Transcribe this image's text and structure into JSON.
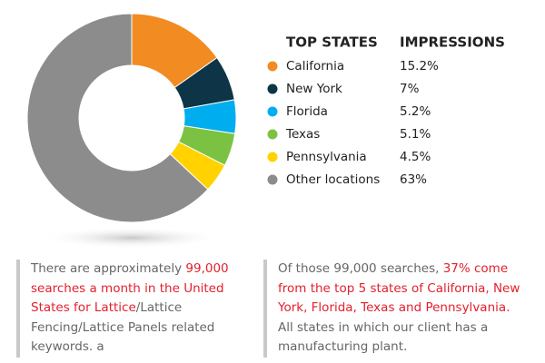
{
  "chart_data": {
    "type": "donut",
    "headers": [
      "TOP STATES",
      "IMPRESSIONS"
    ],
    "categories": [
      "California",
      "New York",
      "Florida",
      "Texas",
      "Pennsylvania",
      "Other locations"
    ],
    "values": [
      15.2,
      7,
      5.2,
      5.1,
      4.5,
      63
    ],
    "value_labels": [
      "15.2%",
      "7%",
      "5.2%",
      "5.1%",
      "4.5%",
      "63%"
    ],
    "colors": [
      "#f28b22",
      "#0d3547",
      "#00aeef",
      "#7cc242",
      "#ffd200",
      "#8c8c8c"
    ]
  },
  "highlight_color": "#e3202d",
  "paragraphs": [
    [
      {
        "text": "There are approximately ",
        "highlight": false
      },
      {
        "text": "99,000 searches a month in the United States for Lattice",
        "highlight": true
      },
      {
        "text": "/Lattice Fencing/Lattice Panels related keywords. a",
        "highlight": false
      }
    ],
    [
      {
        "text": "Of those 99,000 searches, ",
        "highlight": false
      },
      {
        "text": "37% come from the top 5 states of California, New York, Florida, Texas and Pennsylvania.",
        "highlight": true
      },
      {
        "text": " All states in which our client has a manufacturing plant.",
        "highlight": false
      }
    ]
  ]
}
